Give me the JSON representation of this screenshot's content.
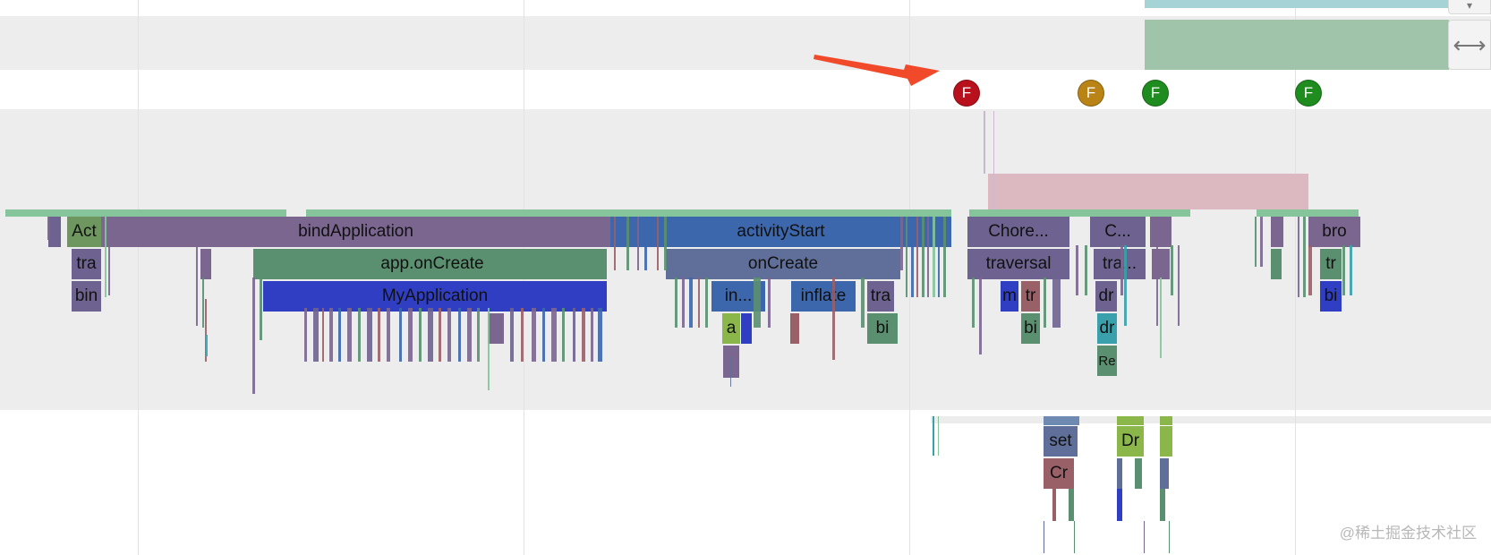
{
  "frame_markers": [
    {
      "label": "F",
      "color": "#b8101d"
    },
    {
      "label": "F",
      "color": "#b98316"
    },
    {
      "label": "F",
      "color": "#1f8c1f"
    },
    {
      "label": "F",
      "color": "#1f8c1f"
    }
  ],
  "slices": {
    "act": "Act",
    "bind_application": "bindApplication",
    "activity_start": "activityStart",
    "choreographer": "Chore...",
    "c_short": "C...",
    "bro": "bro",
    "tra1": "tra",
    "app_on_create": "app.onCreate",
    "on_create": "onCreate",
    "traversal": "traversal",
    "tra_ellipsis": "tra...",
    "tr1": "tr",
    "bin": "bin",
    "my_application": "MyApplication",
    "in_ellipsis": "in...",
    "inflate": "inflate",
    "tra2": "tra",
    "m": "m",
    "tr2": "tr",
    "dr1": "dr",
    "bi1": "bi",
    "a": "a",
    "bi2": "bi",
    "bi3": "bi",
    "dr2": "dr",
    "re": "Re",
    "set": "set",
    "dr3": "Dr",
    "cr": "Cr"
  },
  "watermark": "@稀土掘金技术社区",
  "colors": {
    "purple": "#7b6690",
    "green": "#5a9070",
    "blue": "#3d67ad",
    "steel": "#5f6f99",
    "royal": "#2f3ec2",
    "arrow": "#f04a2a"
  }
}
